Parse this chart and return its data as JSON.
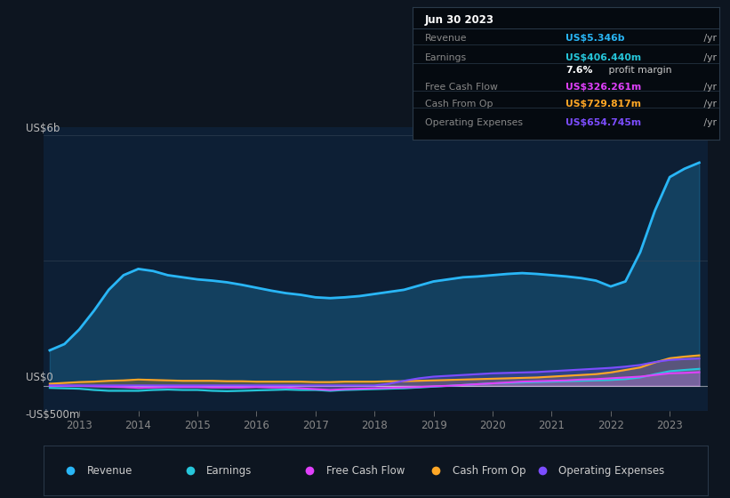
{
  "background_color": "#0d1520",
  "plot_bg_color": "#0d1f35",
  "colors": {
    "revenue": "#29b6f6",
    "earnings": "#26c6da",
    "free_cash_flow": "#e040fb",
    "cash_from_op": "#ffa726",
    "operating_expenses": "#7c4dff"
  },
  "legend_labels": [
    "Revenue",
    "Earnings",
    "Free Cash Flow",
    "Cash From Op",
    "Operating Expenses"
  ],
  "years": [
    2012.5,
    2012.75,
    2013.0,
    2013.25,
    2013.5,
    2013.75,
    2014.0,
    2014.25,
    2014.5,
    2014.75,
    2015.0,
    2015.25,
    2015.5,
    2015.75,
    2016.0,
    2016.25,
    2016.5,
    2016.75,
    2017.0,
    2017.25,
    2017.5,
    2017.75,
    2018.0,
    2018.25,
    2018.5,
    2018.75,
    2019.0,
    2019.25,
    2019.5,
    2019.75,
    2020.0,
    2020.25,
    2020.5,
    2020.75,
    2021.0,
    2021.25,
    2021.5,
    2021.75,
    2022.0,
    2022.25,
    2022.5,
    2022.75,
    2023.0,
    2023.25,
    2023.5
  ],
  "revenue": [
    0.85,
    1.0,
    1.35,
    1.8,
    2.3,
    2.65,
    2.8,
    2.75,
    2.65,
    2.6,
    2.55,
    2.52,
    2.48,
    2.42,
    2.35,
    2.28,
    2.22,
    2.18,
    2.12,
    2.1,
    2.12,
    2.15,
    2.2,
    2.25,
    2.3,
    2.4,
    2.5,
    2.55,
    2.6,
    2.62,
    2.65,
    2.68,
    2.7,
    2.68,
    2.65,
    2.62,
    2.58,
    2.52,
    2.38,
    2.5,
    3.2,
    4.2,
    5.0,
    5.2,
    5.346
  ],
  "earnings": [
    -0.05,
    -0.06,
    -0.07,
    -0.1,
    -0.12,
    -0.12,
    -0.12,
    -0.1,
    -0.09,
    -0.1,
    -0.1,
    -0.12,
    -0.13,
    -0.12,
    -0.11,
    -0.1,
    -0.09,
    -0.1,
    -0.1,
    -0.12,
    -0.1,
    -0.09,
    -0.08,
    -0.07,
    -0.06,
    -0.04,
    -0.02,
    0.0,
    0.02,
    0.04,
    0.06,
    0.07,
    0.08,
    0.09,
    0.1,
    0.11,
    0.12,
    0.13,
    0.14,
    0.16,
    0.2,
    0.28,
    0.35,
    0.38,
    0.406
  ],
  "free_cash_flow": [
    0.0,
    0.0,
    0.0,
    -0.01,
    -0.02,
    -0.03,
    -0.05,
    -0.04,
    -0.03,
    -0.03,
    -0.03,
    -0.04,
    -0.04,
    -0.04,
    -0.03,
    -0.04,
    -0.04,
    -0.06,
    -0.08,
    -0.1,
    -0.08,
    -0.07,
    -0.06,
    -0.05,
    -0.04,
    -0.03,
    -0.01,
    0.0,
    0.02,
    0.04,
    0.06,
    0.08,
    0.1,
    0.11,
    0.12,
    0.13,
    0.15,
    0.16,
    0.18,
    0.2,
    0.22,
    0.26,
    0.3,
    0.31,
    0.326
  ],
  "cash_from_op": [
    0.05,
    0.07,
    0.09,
    0.1,
    0.12,
    0.13,
    0.15,
    0.14,
    0.13,
    0.12,
    0.12,
    0.12,
    0.11,
    0.11,
    0.1,
    0.1,
    0.1,
    0.1,
    0.09,
    0.09,
    0.1,
    0.1,
    0.1,
    0.11,
    0.11,
    0.12,
    0.13,
    0.14,
    0.15,
    0.16,
    0.17,
    0.18,
    0.19,
    0.2,
    0.22,
    0.24,
    0.26,
    0.28,
    0.32,
    0.38,
    0.44,
    0.56,
    0.66,
    0.7,
    0.73
  ],
  "operating_expenses": [
    0.01,
    0.01,
    0.01,
    0.01,
    0.01,
    0.01,
    0.01,
    0.01,
    0.01,
    0.01,
    0.01,
    0.01,
    0.01,
    0.01,
    0.01,
    0.01,
    0.01,
    0.01,
    0.01,
    0.01,
    0.01,
    0.01,
    0.01,
    0.05,
    0.12,
    0.18,
    0.22,
    0.24,
    0.26,
    0.28,
    0.3,
    0.31,
    0.32,
    0.33,
    0.35,
    0.37,
    0.39,
    0.41,
    0.43,
    0.46,
    0.5,
    0.57,
    0.62,
    0.64,
    0.655
  ],
  "x_ticks": [
    2013,
    2014,
    2015,
    2016,
    2017,
    2018,
    2019,
    2020,
    2021,
    2022,
    2023
  ],
  "xlim": [
    2012.4,
    2023.65
  ],
  "ylim": [
    -0.6,
    6.2
  ],
  "ylabel_top": "US$6b",
  "ylabel_zero": "US$0",
  "ylabel_neg": "-US$500m",
  "info_box_title": "Jun 30 2023",
  "info_rows": [
    {
      "label": "Revenue",
      "value": "US$5.346b",
      "suffix": " /yr",
      "color": "#29b6f6"
    },
    {
      "label": "Earnings",
      "value": "US$406.440m",
      "suffix": " /yr",
      "color": "#26c6da"
    },
    {
      "label": "",
      "value": "7.6%",
      "suffix": " profit margin",
      "color": "#ffffff"
    },
    {
      "label": "Free Cash Flow",
      "value": "US$326.261m",
      "suffix": " /yr",
      "color": "#e040fb"
    },
    {
      "label": "Cash From Op",
      "value": "US$729.817m",
      "suffix": " /yr",
      "color": "#ffa726"
    },
    {
      "label": "Operating Expenses",
      "value": "US$654.745m",
      "suffix": " /yr",
      "color": "#7c4dff"
    }
  ]
}
